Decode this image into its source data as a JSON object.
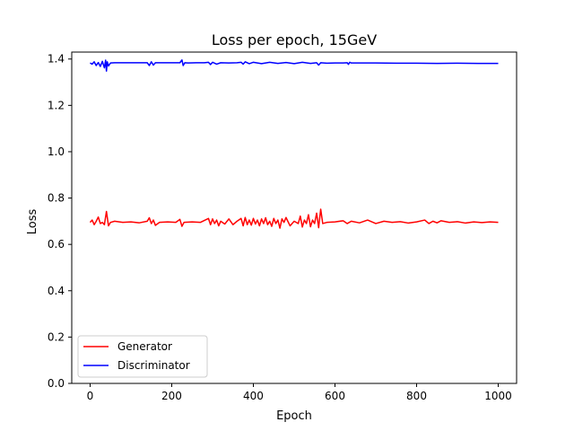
{
  "chart_data": {
    "type": "line",
    "title": "Loss per epoch, 15GeV",
    "xlabel": "Epoch",
    "ylabel": "Loss",
    "xlim": [
      -45,
      1045
    ],
    "ylim": [
      0.0,
      1.43
    ],
    "xticks": [
      0,
      200,
      400,
      600,
      800,
      1000
    ],
    "yticks": [
      0.0,
      0.2,
      0.4,
      0.6,
      0.8,
      1.0,
      1.2,
      1.4
    ],
    "xtick_labels": [
      "0",
      "200",
      "400",
      "600",
      "800",
      "1000"
    ],
    "ytick_labels": [
      "0.0",
      "0.2",
      "0.4",
      "0.6",
      "0.8",
      "1.0",
      "1.2",
      "1.4"
    ],
    "grid": false,
    "legend_position": "lower-left",
    "series": [
      {
        "name": "Generator",
        "color": "#ff0000",
        "x": [
          0,
          5,
          10,
          15,
          20,
          25,
          30,
          35,
          40,
          45,
          50,
          60,
          80,
          100,
          120,
          140,
          145,
          150,
          155,
          160,
          170,
          190,
          210,
          220,
          225,
          230,
          250,
          270,
          290,
          295,
          300,
          305,
          310,
          315,
          320,
          330,
          340,
          350,
          360,
          370,
          375,
          380,
          385,
          390,
          395,
          400,
          405,
          410,
          415,
          420,
          425,
          430,
          435,
          440,
          445,
          450,
          455,
          460,
          465,
          470,
          475,
          480,
          490,
          500,
          510,
          515,
          520,
          525,
          530,
          535,
          540,
          545,
          550,
          555,
          560,
          565,
          570,
          580,
          600,
          620,
          630,
          640,
          660,
          680,
          700,
          720,
          740,
          760,
          780,
          800,
          820,
          830,
          840,
          850,
          860,
          880,
          900,
          920,
          940,
          960,
          980,
          1000
        ],
        "y": [
          0.695,
          0.705,
          0.685,
          0.7,
          0.718,
          0.69,
          0.695,
          0.685,
          0.742,
          0.68,
          0.695,
          0.7,
          0.695,
          0.697,
          0.693,
          0.7,
          0.715,
          0.69,
          0.705,
          0.682,
          0.695,
          0.697,
          0.695,
          0.708,
          0.678,
          0.695,
          0.697,
          0.695,
          0.712,
          0.685,
          0.71,
          0.69,
          0.705,
          0.68,
          0.7,
          0.688,
          0.71,
          0.685,
          0.7,
          0.712,
          0.68,
          0.716,
          0.685,
          0.705,
          0.683,
          0.712,
          0.688,
          0.705,
          0.68,
          0.71,
          0.69,
          0.715,
          0.685,
          0.7,
          0.678,
          0.712,
          0.69,
          0.705,
          0.67,
          0.71,
          0.695,
          0.716,
          0.68,
          0.7,
          0.69,
          0.722,
          0.675,
          0.705,
          0.69,
          0.728,
          0.676,
          0.705,
          0.69,
          0.735,
          0.672,
          0.752,
          0.69,
          0.695,
          0.697,
          0.702,
          0.69,
          0.7,
          0.693,
          0.705,
          0.69,
          0.7,
          0.695,
          0.698,
          0.692,
          0.697,
          0.705,
          0.69,
          0.7,
          0.693,
          0.702,
          0.695,
          0.698,
          0.692,
          0.697,
          0.694,
          0.697,
          0.695
        ]
      },
      {
        "name": "Discriminator",
        "color": "#0000ff",
        "x": [
          0,
          5,
          10,
          15,
          20,
          25,
          30,
          35,
          38,
          40,
          42,
          45,
          50,
          60,
          80,
          100,
          120,
          140,
          145,
          150,
          155,
          160,
          180,
          200,
          220,
          225,
          228,
          232,
          240,
          260,
          280,
          290,
          295,
          300,
          310,
          320,
          340,
          360,
          370,
          375,
          380,
          390,
          400,
          420,
          440,
          460,
          480,
          500,
          520,
          540,
          555,
          560,
          565,
          580,
          600,
          620,
          630,
          633,
          636,
          640,
          660,
          700,
          750,
          800,
          850,
          900,
          950,
          1000
        ],
        "y": [
          1.383,
          1.378,
          1.388,
          1.372,
          1.385,
          1.368,
          1.39,
          1.362,
          1.395,
          1.348,
          1.388,
          1.37,
          1.383,
          1.384,
          1.384,
          1.384,
          1.384,
          1.384,
          1.372,
          1.388,
          1.374,
          1.384,
          1.384,
          1.384,
          1.384,
          1.396,
          1.372,
          1.384,
          1.383,
          1.384,
          1.384,
          1.386,
          1.376,
          1.386,
          1.378,
          1.384,
          1.383,
          1.384,
          1.386,
          1.378,
          1.388,
          1.38,
          1.386,
          1.38,
          1.386,
          1.381,
          1.385,
          1.38,
          1.386,
          1.381,
          1.384,
          1.374,
          1.384,
          1.382,
          1.383,
          1.383,
          1.384,
          1.377,
          1.386,
          1.383,
          1.383,
          1.383,
          1.382,
          1.382,
          1.381,
          1.382,
          1.381,
          1.381
        ]
      }
    ]
  }
}
